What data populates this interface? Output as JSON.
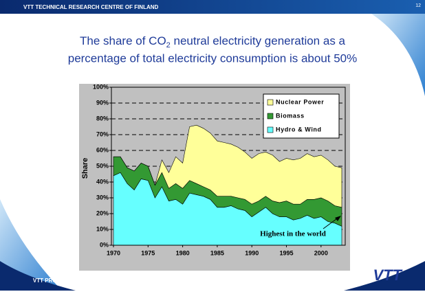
{
  "header": {
    "org": "VTT TECHNICAL RESEARCH CENTRE OF FINLAND",
    "page": "12"
  },
  "footer": {
    "section": "VTT PROCESSES",
    "logo": "VTT"
  },
  "chart_data": {
    "type": "stacked_area",
    "title_parts": [
      "The share of CO",
      "2",
      " neutral electricity generation as a",
      "percentage of total electricity consumption is about 50%"
    ],
    "ylabel": "Share",
    "x": [
      1970,
      1971,
      1972,
      1973,
      1974,
      1975,
      1976,
      1977,
      1978,
      1979,
      1980,
      1981,
      1982,
      1983,
      1984,
      1985,
      1986,
      1987,
      1988,
      1989,
      1990,
      1991,
      1992,
      1993,
      1994,
      1995,
      1996,
      1997,
      1998,
      1999,
      2000,
      2001,
      2002,
      2003
    ],
    "series": [
      {
        "name": "Hydro & Wind",
        "color": "#66ffff",
        "values": [
          44,
          46,
          39,
          35,
          42,
          41,
          30,
          37,
          28,
          29,
          26,
          33,
          32,
          31,
          29,
          24,
          24,
          25,
          23,
          22,
          18,
          21,
          24,
          20,
          18,
          18,
          16,
          17,
          19,
          17,
          18,
          15,
          14,
          12
        ]
      },
      {
        "name": "Biomass",
        "color": "#339933",
        "values": [
          12,
          10,
          10,
          12,
          10,
          9,
          8,
          9,
          8,
          10,
          10,
          8,
          7,
          6,
          6,
          7,
          7,
          6,
          7,
          7,
          8,
          7,
          7,
          8,
          9,
          10,
          10,
          9,
          10,
          12,
          12,
          13,
          11,
          12
        ]
      },
      {
        "name": "Nuclear Power",
        "color": "#ffff99",
        "values": [
          0,
          0,
          0,
          0,
          0,
          0,
          0,
          8,
          10,
          17,
          16,
          34,
          37,
          37,
          36,
          35,
          34,
          33,
          32,
          30,
          29,
          30,
          28,
          29,
          26,
          27,
          28,
          29,
          29,
          27,
          27,
          26,
          25,
          25
        ]
      }
    ],
    "xlim": [
      1970,
      2003
    ],
    "xticks": [
      1970,
      1975,
      1980,
      1985,
      1990,
      1995,
      2000
    ],
    "ylim": [
      0,
      100
    ],
    "yticks": [
      {
        "value": 0,
        "label": "0%"
      },
      {
        "value": 10,
        "label": "10%"
      },
      {
        "value": 20,
        "label": "20%"
      },
      {
        "value": 30,
        "label": "30%"
      },
      {
        "value": 40,
        "label": "40%"
      },
      {
        "value": 50,
        "label": "50%"
      },
      {
        "value": 60,
        "label": "60%"
      },
      {
        "value": 70,
        "label": "70%"
      },
      {
        "value": 80,
        "label": "80%"
      },
      {
        "value": 90,
        "label": "90%"
      },
      {
        "value": 100,
        "label": "100%"
      }
    ],
    "grid": true,
    "legend": "upper right",
    "annotation": "Highest in the world"
  }
}
